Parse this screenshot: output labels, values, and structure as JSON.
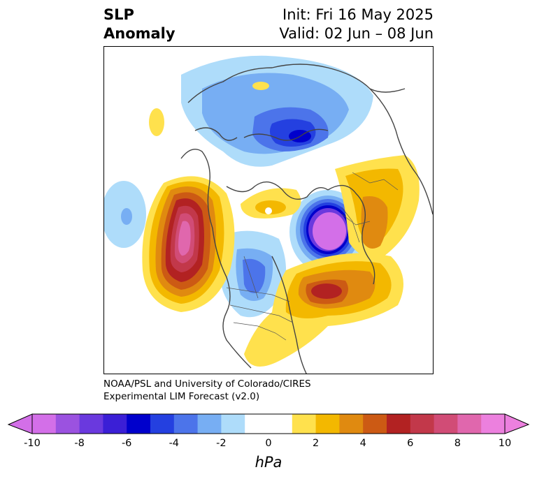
{
  "header": {
    "title_line1": "SLP",
    "title_line2": "Anomaly",
    "init": "Init: Fri 16 May 2025",
    "valid": "Valid: 02 Jun – 08 Jun"
  },
  "credit": {
    "line1": "NOAA/PSL and University of Colorado/CIRES",
    "line2": "Experimental LIM Forecast (v2.0)"
  },
  "colorbar": {
    "label": "hPa",
    "ticks": [
      "-10",
      "-8",
      "-6",
      "-4",
      "-2",
      "0",
      "2",
      "4",
      "6",
      "8",
      "10"
    ],
    "colors": [
      "#d36fe8",
      "#9b52e0",
      "#6a39de",
      "#3b1fd6",
      "#0000cc",
      "#2440e0",
      "#4c74ea",
      "#77aef3",
      "#aedcfa",
      "#ffffff",
      "#ffffff",
      "#ffe14d",
      "#f3b800",
      "#e08a10",
      "#cc5a14",
      "#b22222",
      "#c2384a",
      "#d14c76",
      "#e067ad",
      "#ec80de"
    ]
  }
}
